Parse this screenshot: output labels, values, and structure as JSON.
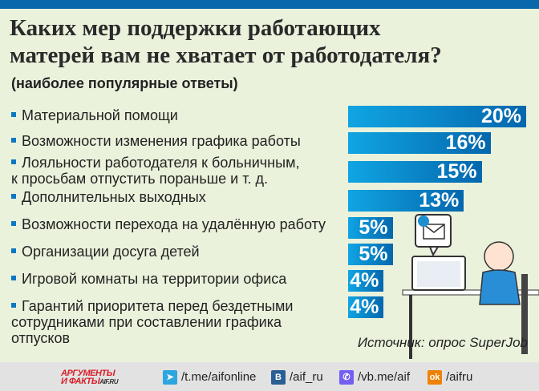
{
  "header": {
    "title_line1": "Каких мер поддержки работающих",
    "title_line2": "матерей вам не хватает от работодателя?",
    "subtitle": "(наиболее популярные ответы)"
  },
  "chart_data": {
    "type": "bar",
    "orientation": "horizontal",
    "title": "Каких мер поддержки работающих матерей вам не хватает от работодателя?",
    "subtitle": "(наиболее популярные ответы)",
    "categories": [
      [
        "Материальной помощи"
      ],
      [
        "Возможности изменения графика работы"
      ],
      [
        "Лояльности работодателя к больничным,",
        "к просьбам отпустить пораньше и т. д."
      ],
      [
        "Дополнительных выходных"
      ],
      [
        "Возможности перехода на удалённую работу"
      ],
      [
        "Организации досуга детей"
      ],
      [
        "Игровой комнаты на территории офиса"
      ],
      [
        "Гарантий приоритета перед бездетными",
        "сотрудниками при составлении графика",
        "отпусков"
      ]
    ],
    "values": [
      20,
      16,
      15,
      13,
      5,
      5,
      4,
      4
    ],
    "value_labels": [
      "20%",
      "16%",
      "15%",
      "13%",
      "5%",
      "5%",
      "4%",
      "4%"
    ],
    "unit": "%",
    "xlim": [
      0,
      20
    ],
    "bar_color": "#0a78c2"
  },
  "source": "Источник: опрос SuperJob",
  "footer": {
    "logo_line1": "АРГУМЕНТЫ",
    "logo_line2": "И ФАКТЫ",
    "logo_domain": "AIF.RU",
    "links": [
      {
        "icon": "telegram-icon",
        "text": "/t.me/aifonline",
        "color": "#2ca5e0"
      },
      {
        "icon": "vk-icon",
        "text": "/aif_ru",
        "color": "#2b5f94"
      },
      {
        "icon": "viber-icon",
        "text": "/vb.me/aif",
        "color": "#7360f2"
      },
      {
        "icon": "odnoklassniki-icon",
        "text": "/aifru",
        "color": "#ee8208"
      }
    ]
  }
}
